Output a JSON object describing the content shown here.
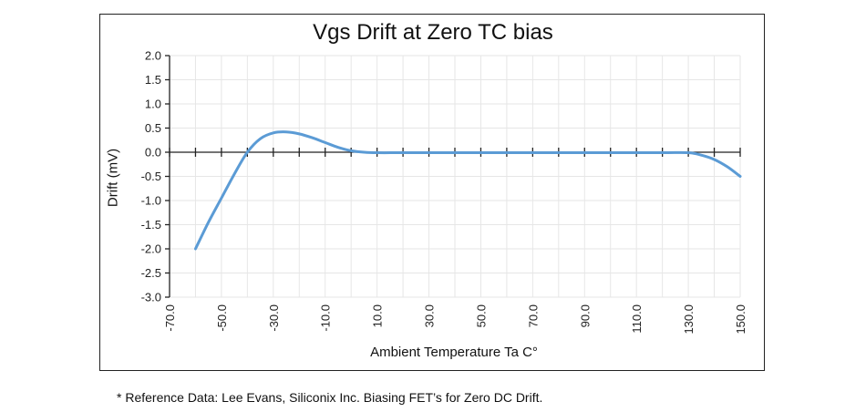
{
  "chart_data": {
    "type": "line",
    "title": "Vgs Drift at Zero TC bias",
    "xlabel": "Ambient Temperature Ta C°",
    "ylabel": "Drift (mV)",
    "xlim": [
      -70,
      150
    ],
    "ylim": [
      -3,
      2
    ],
    "x_ticks": [
      -70,
      -50,
      -30,
      -10,
      10,
      30,
      50,
      70,
      90,
      110,
      130,
      150
    ],
    "x_tick_labels": [
      "-70.0",
      "-50.0",
      "-30.0",
      "-10.0",
      "10.0",
      "30.0",
      "50.0",
      "70.0",
      "90.0",
      "110.0",
      "130.0",
      "150.0"
    ],
    "y_ticks": [
      2,
      1.5,
      1,
      0.5,
      0,
      -0.5,
      -1,
      -1.5,
      -2,
      -2.5,
      -3
    ],
    "y_tick_labels": [
      "2.0",
      "1.5",
      "1.0",
      "0.5",
      "0.0",
      "-0.5",
      "-1.0",
      "-1.5",
      "-2.0",
      "-2.5",
      "-3.0"
    ],
    "grid": true,
    "series_color": "#5b9bd5",
    "x": [
      -60,
      -55,
      -50,
      -45,
      -40,
      -35,
      -30,
      -25,
      -20,
      -15,
      -10,
      -5,
      0,
      5,
      10,
      20,
      40,
      60,
      80,
      100,
      120,
      130,
      135,
      140,
      145,
      150
    ],
    "y": [
      -2.0,
      -1.45,
      -0.95,
      -0.45,
      0.0,
      0.28,
      0.4,
      0.42,
      0.38,
      0.3,
      0.2,
      0.1,
      0.03,
      0.0,
      -0.01,
      -0.01,
      -0.01,
      -0.01,
      -0.01,
      -0.01,
      -0.01,
      -0.01,
      -0.06,
      -0.15,
      -0.3,
      -0.5
    ]
  },
  "footnote": "* Reference Data: Lee Evans, Siliconix Inc. Biasing FET’s for Zero DC Drift."
}
